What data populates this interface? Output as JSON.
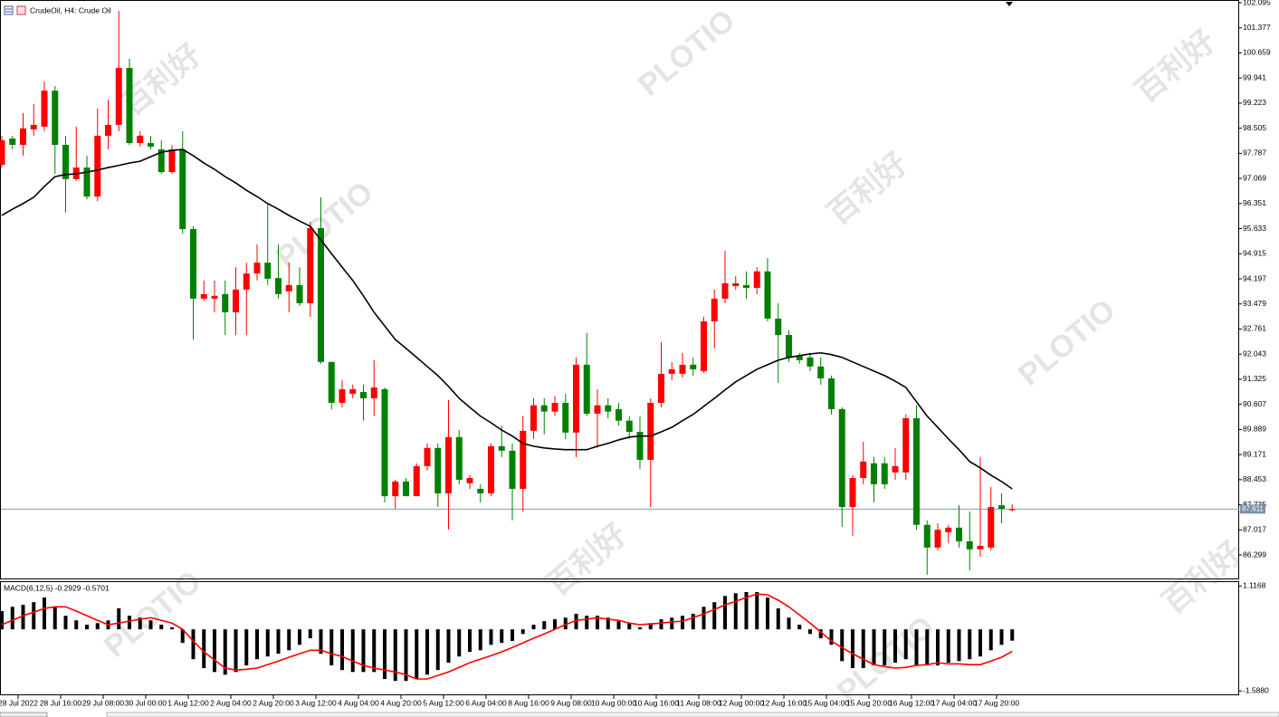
{
  "chart_data": {
    "type": "candlestick",
    "title": "CrudeOil, H4:  Crude Oil",
    "watermarks": [
      "百利好",
      "PLOTIO"
    ],
    "up_color": "#ff0000",
    "down_color": "#008000",
    "ylim": [
      85.6,
      102.173
    ],
    "yticks": [
      102.095,
      101.377,
      100.659,
      99.941,
      99.223,
      98.505,
      97.787,
      97.069,
      96.351,
      95.633,
      94.915,
      94.197,
      93.479,
      92.761,
      92.043,
      91.325,
      90.607,
      89.889,
      89.171,
      88.453,
      87.735,
      87.017,
      86.299
    ],
    "current_price": 87.611,
    "x_labels": [
      "28 Jul 2022",
      "28 Jul 16:00",
      "29 Jul 08:00",
      "30 Jul 00:00",
      "1 Aug 12:00",
      "2 Aug 04:00",
      "2 Aug 20:00",
      "3 Aug 12:00",
      "4 Aug 04:00",
      "4 Aug 20:00",
      "5 Aug 12:00",
      "6 Aug 04:00",
      "8 Aug 16:00",
      "9 Aug 08:00",
      "10 Aug 00:00",
      "10 Aug 16:00",
      "11 Aug 08:00",
      "12 Aug 00:00",
      "12 Aug 16:00",
      "15 Aug 04:00",
      "15 Aug 20:00",
      "16 Aug 12:00",
      "17 Aug 04:00",
      "17 Aug 20:00"
    ],
    "open": [
      97.46,
      98.21,
      98.03,
      98.47,
      98.55,
      99.58,
      98.03,
      97.05,
      97.38,
      96.55,
      98.29,
      98.6,
      100.23,
      98.08,
      98.08,
      97.9,
      97.25,
      97.9,
      95.62,
      93.63,
      93.63,
      93.76,
      93.24,
      93.89,
      94.35,
      94.66,
      94.22,
      93.84,
      94.02,
      93.5,
      95.65,
      91.82,
      90.65,
      90.91,
      90.96,
      90.78,
      91.04,
      87.98,
      88.4,
      87.98,
      88.84,
      89.36,
      88.06,
      89.67,
      88.35,
      88.19,
      88.06,
      89.41,
      89.28,
      88.19,
      89.85,
      90.58,
      90.4,
      90.65,
      89.8,
      91.74,
      90.34,
      90.58,
      90.47,
      90.14,
      89.82,
      89.02,
      90.65,
      91.48,
      91.48,
      91.74,
      91.56,
      92.98,
      93.63,
      93.99,
      94.02,
      93.94,
      94.41,
      93.06,
      92.59,
      92.0,
      91.95,
      91.69,
      91.35,
      90.47,
      87.67,
      88.5,
      88.92,
      88.92,
      88.66,
      88.66,
      90.21,
      87.16,
      86.51,
      86.95,
      87.08,
      86.69,
      86.46,
      86.51,
      87.72,
      87.58
    ],
    "high": [
      98.29,
      98.29,
      98.94,
      99.2,
      99.84,
      99.71,
      98.29,
      98.55,
      97.72,
      99.07,
      99.32,
      101.86,
      100.49,
      98.42,
      98.29,
      98.16,
      98.03,
      98.42,
      95.7,
      94.15,
      94.15,
      94.15,
      94.53,
      94.66,
      95.18,
      96.35,
      95.18,
      94.66,
      94.53,
      95.83,
      96.53,
      91.82,
      91.3,
      91.17,
      91.17,
      91.87,
      91.09,
      88.45,
      88.5,
      88.92,
      89.49,
      89.49,
      90.73,
      89.87,
      88.58,
      88.32,
      89.49,
      90.0,
      89.49,
      90.27,
      90.78,
      90.78,
      90.84,
      90.91,
      91.95,
      92.65,
      91.04,
      90.78,
      90.65,
      90.27,
      90.27,
      90.78,
      92.39,
      91.82,
      92.08,
      91.95,
      93.11,
      93.89,
      95.0,
      94.28,
      94.41,
      94.53,
      94.79,
      93.5,
      92.72,
      92.08,
      92.08,
      91.95,
      91.43,
      90.52,
      88.58,
      89.54,
      89.1,
      89.1,
      89.36,
      90.32,
      90.58,
      87.29,
      87.21,
      87.16,
      87.72,
      87.54,
      89.1,
      88.24,
      88.06,
      87.75
    ],
    "low": [
      97.38,
      97.9,
      97.72,
      98.29,
      98.42,
      97.2,
      96.09,
      97.0,
      96.47,
      96.42,
      97.9,
      98.42,
      98.03,
      97.98,
      97.9,
      97.2,
      97.2,
      95.49,
      92.46,
      93.57,
      93.24,
      92.59,
      92.59,
      92.59,
      94.15,
      94.02,
      93.63,
      93.24,
      93.42,
      93.11,
      91.77,
      90.47,
      90.52,
      90.78,
      90.14,
      90.27,
      87.8,
      87.62,
      88.09,
      88.09,
      88.71,
      87.67,
      87.02,
      88.32,
      88.19,
      87.8,
      87.98,
      89.1,
      87.29,
      87.54,
      89.62,
      89.75,
      90.27,
      89.62,
      89.1,
      90.27,
      89.36,
      90.21,
      90.0,
      89.62,
      88.76,
      87.67,
      90.52,
      91.3,
      91.37,
      91.43,
      91.51,
      92.21,
      93.5,
      93.89,
      93.63,
      93.76,
      92.98,
      91.22,
      91.82,
      91.77,
      91.56,
      91.17,
      90.32,
      87.1,
      86.85,
      88.32,
      87.8,
      88.19,
      88.45,
      88.45,
      87.02,
      85.73,
      86.43,
      86.64,
      86.51,
      85.86,
      86.25,
      86.43,
      87.21,
      87.54
    ],
    "close": [
      98.16,
      98.03,
      98.5,
      98.6,
      99.58,
      98.03,
      97.05,
      97.38,
      96.55,
      98.29,
      98.6,
      100.23,
      98.08,
      98.29,
      97.98,
      97.25,
      97.9,
      95.62,
      93.63,
      93.76,
      93.71,
      93.24,
      93.89,
      94.35,
      94.66,
      94.2,
      93.76,
      94.02,
      93.5,
      95.65,
      91.82,
      90.65,
      91.04,
      91.04,
      90.78,
      91.09,
      87.98,
      88.4,
      87.98,
      88.84,
      89.36,
      88.06,
      89.67,
      88.45,
      88.5,
      88.06,
      89.41,
      89.28,
      88.19,
      89.85,
      90.58,
      90.4,
      90.65,
      89.8,
      91.74,
      90.34,
      90.58,
      90.4,
      90.14,
      89.82,
      89.02,
      90.65,
      91.48,
      91.61,
      91.74,
      91.61,
      92.98,
      93.63,
      94.07,
      94.07,
      93.94,
      94.41,
      93.06,
      92.59,
      91.95,
      91.87,
      91.69,
      91.35,
      90.47,
      87.67,
      88.5,
      88.97,
      88.32,
      88.32,
      88.84,
      90.21,
      87.16,
      86.51,
      87.02,
      87.08,
      86.69,
      86.46,
      86.56,
      87.67,
      87.62,
      87.611
    ],
    "moving_average": {
      "color": "#000000",
      "values": [
        96.01,
        96.19,
        96.35,
        96.53,
        96.84,
        97.12,
        97.18,
        97.2,
        97.25,
        97.31,
        97.38,
        97.44,
        97.51,
        97.56,
        97.69,
        97.82,
        97.87,
        97.9,
        97.72,
        97.51,
        97.33,
        97.12,
        96.94,
        96.73,
        96.55,
        96.35,
        96.19,
        96.01,
        95.85,
        95.7,
        95.31,
        94.92,
        94.53,
        94.15,
        93.71,
        93.24,
        92.85,
        92.46,
        92.21,
        91.95,
        91.69,
        91.43,
        91.12,
        90.78,
        90.52,
        90.27,
        90.08,
        89.87,
        89.7,
        89.49,
        89.41,
        89.36,
        89.33,
        89.31,
        89.31,
        89.31,
        89.41,
        89.49,
        89.59,
        89.67,
        89.7,
        89.7,
        89.82,
        89.95,
        90.14,
        90.32,
        90.55,
        90.78,
        91.02,
        91.25,
        91.43,
        91.61,
        91.74,
        91.87,
        91.95,
        92.0,
        92.05,
        92.08,
        92.03,
        91.95,
        91.82,
        91.69,
        91.56,
        91.43,
        91.27,
        91.09,
        90.68,
        90.27,
        89.95,
        89.62,
        89.31,
        88.97,
        88.79,
        88.58,
        88.4,
        88.19
      ]
    },
    "macd": {
      "label": "MACD(6,12,5) -0.2929 -0.5701",
      "ylim": [
        -1.7,
        1.24
      ],
      "yticks": [
        1.1168,
        {
          "value": -1.588,
          "label": "-1.5880"
        }
      ],
      "histogram_color": "#000000",
      "signal_color": "#ff0000",
      "histogram": [
        0.47,
        0.58,
        0.63,
        0.7,
        0.82,
        0.58,
        0.35,
        0.23,
        0.12,
        0.16,
        0.23,
        0.54,
        0.35,
        0.3,
        0.23,
        0.12,
        0.05,
        -0.35,
        -0.77,
        -1.0,
        -1.1,
        -1.17,
        -1.1,
        -0.93,
        -0.77,
        -0.7,
        -0.63,
        -0.54,
        -0.4,
        -0.23,
        -0.63,
        -0.93,
        -1.05,
        -1.1,
        -1.1,
        -1.1,
        -1.28,
        -1.33,
        -1.33,
        -1.28,
        -1.17,
        -1.05,
        -0.86,
        -0.7,
        -0.58,
        -0.54,
        -0.4,
        -0.35,
        -0.3,
        -0.12,
        0.12,
        0.21,
        0.26,
        0.3,
        0.4,
        0.35,
        0.35,
        0.3,
        0.21,
        0.16,
        0.05,
        0.16,
        0.26,
        0.3,
        0.35,
        0.4,
        0.58,
        0.7,
        0.86,
        0.93,
        0.96,
        0.96,
        0.82,
        0.54,
        0.3,
        0.12,
        -0.12,
        -0.23,
        -0.4,
        -0.82,
        -1.0,
        -1.0,
        -0.93,
        -0.93,
        -0.86,
        -0.77,
        -0.93,
        -0.93,
        -0.93,
        -0.86,
        -0.82,
        -0.77,
        -0.7,
        -0.54,
        -0.4,
        -0.2929
      ],
      "signal": [
        0.12,
        0.23,
        0.35,
        0.44,
        0.54,
        0.58,
        0.58,
        0.47,
        0.35,
        0.23,
        0.12,
        0.16,
        0.21,
        0.26,
        0.3,
        0.23,
        0.16,
        0.0,
        -0.3,
        -0.58,
        -0.79,
        -1.0,
        -1.05,
        -1.03,
        -1.0,
        -0.91,
        -0.82,
        -0.72,
        -0.63,
        -0.54,
        -0.54,
        -0.63,
        -0.7,
        -0.82,
        -0.93,
        -1.0,
        -1.05,
        -1.1,
        -1.17,
        -1.28,
        -1.28,
        -1.19,
        -1.1,
        -0.98,
        -0.86,
        -0.77,
        -0.68,
        -0.58,
        -0.47,
        -0.35,
        -0.23,
        -0.12,
        0.0,
        0.12,
        0.23,
        0.26,
        0.3,
        0.26,
        0.23,
        0.16,
        0.12,
        0.14,
        0.16,
        0.19,
        0.21,
        0.3,
        0.4,
        0.51,
        0.63,
        0.72,
        0.82,
        0.91,
        0.89,
        0.75,
        0.58,
        0.37,
        0.16,
        -0.07,
        -0.3,
        -0.47,
        -0.63,
        -0.77,
        -0.91,
        -0.96,
        -1.0,
        -0.98,
        -0.93,
        -0.91,
        -0.86,
        -0.89,
        -0.89,
        -0.91,
        -0.91,
        -0.82,
        -0.72,
        -0.5701
      ]
    }
  }
}
